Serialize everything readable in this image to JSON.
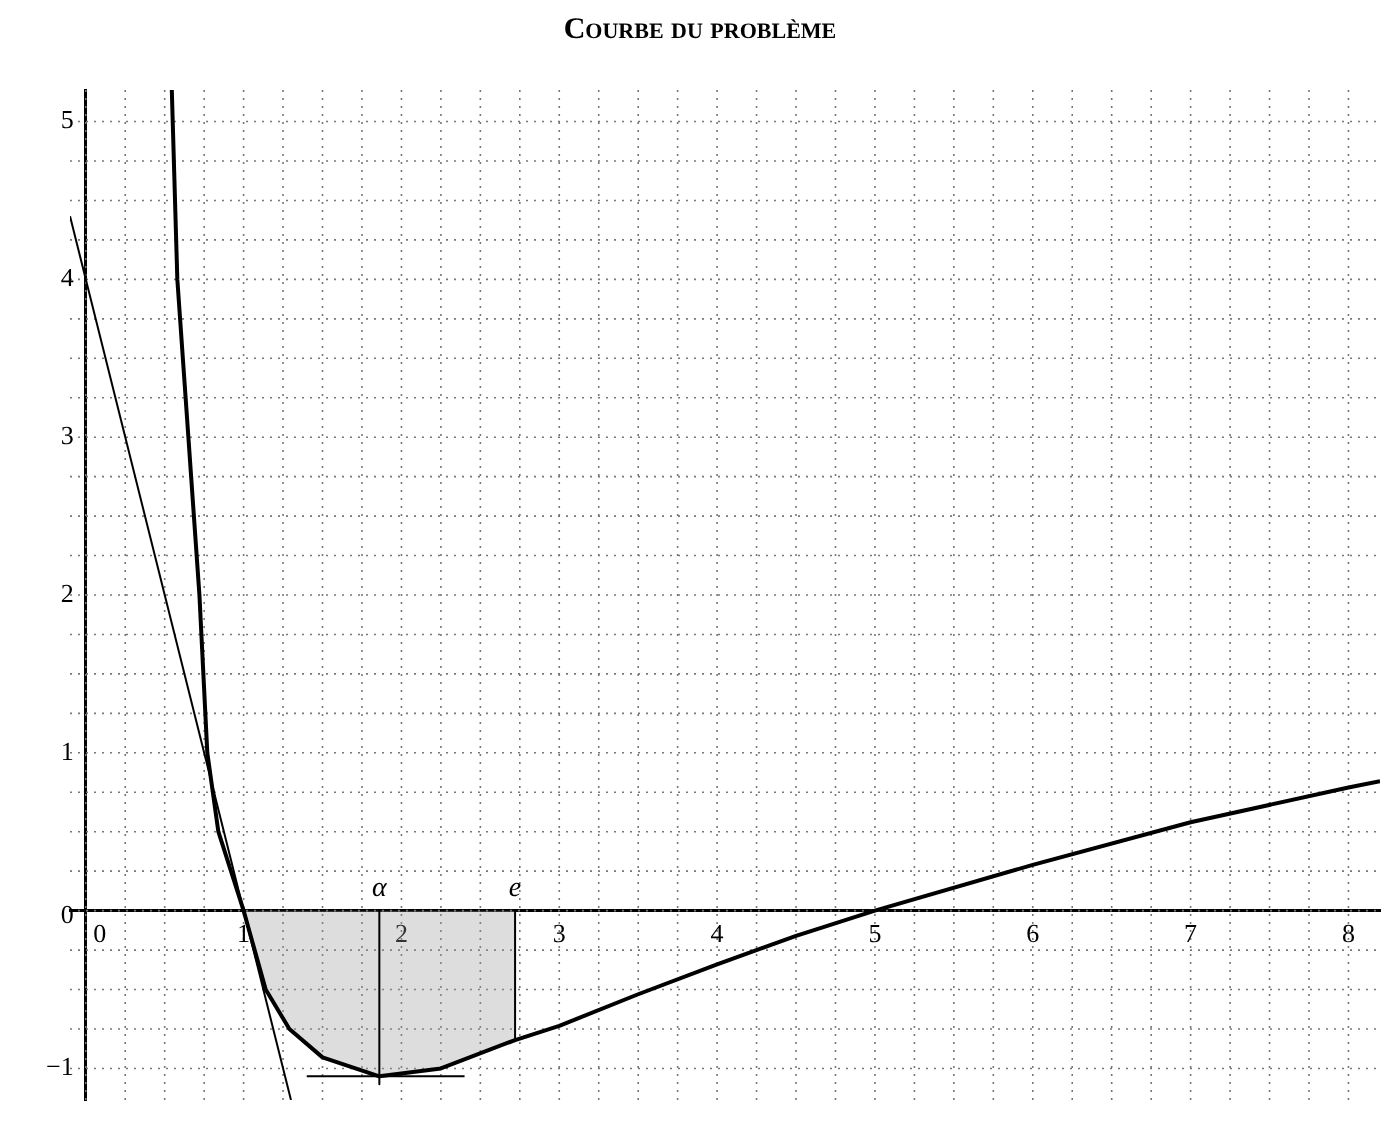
{
  "chart_data": {
    "type": "line",
    "title": "Courbe du problème",
    "series": [
      {
        "color": "#000000",
        "x": [
          0.545,
          0.58,
          0.65,
          0.72,
          0.77,
          0.84,
          1,
          1.14,
          1.29,
          1.5,
          1.86,
          2.25,
          2.72,
          3,
          3.5,
          4,
          4.5,
          5,
          6,
          7,
          8,
          8.2
        ],
        "values": [
          5.2,
          4,
          3,
          2,
          1,
          0.5,
          0,
          -0.5,
          -0.75,
          -0.93,
          -1.05,
          -1,
          -0.82,
          -0.73,
          -0.53,
          -0.34,
          -0.16,
          0,
          0.29,
          0.56,
          0.78,
          0.82
        ]
      },
      {
        "color": "#000000",
        "x": [
          -0.1,
          1.3
        ],
        "values": [
          4.4,
          -1.2
        ]
      },
      {
        "color": "#000000",
        "x": [
          1.86,
          1.86
        ],
        "values": [
          0,
          -1.1
        ]
      },
      {
        "color": "#000000",
        "x": [
          2.72,
          2.72
        ],
        "values": [
          0,
          -0.82
        ]
      },
      {
        "color": "#000000",
        "x": [
          1.4,
          2.4
        ],
        "values": [
          -1.05,
          -1.05
        ]
      },
      {
        "type": "area",
        "color": "#9a9a9a",
        "x": [
          1,
          1.14,
          1.29,
          1.5,
          1.86,
          2.25,
          2.72
        ],
        "values": [
          0,
          -0.5,
          -0.75,
          -0.93,
          -1.05,
          -1,
          -0.82
        ]
      }
    ],
    "annotations": [
      {
        "text": "α",
        "x": 1.86,
        "y": 0
      },
      {
        "text": "e",
        "x": 2.72,
        "y": 0
      }
    ],
    "xlim": [
      -0.1,
      8.2
    ],
    "ylim": [
      -1.2,
      5.2
    ],
    "xticks": [
      0,
      {
        "value": 0.25,
        "label": null
      },
      {
        "value": 0.5,
        "label": null
      },
      {
        "value": 0.75,
        "label": null
      },
      1,
      {
        "value": 1.25,
        "label": null
      },
      {
        "value": 1.5,
        "label": null
      },
      {
        "value": 1.75,
        "label": null
      },
      2,
      {
        "value": 2.25,
        "label": null
      },
      {
        "value": 2.5,
        "label": null
      },
      {
        "value": 2.75,
        "label": null
      },
      3,
      {
        "value": 3.25,
        "label": null
      },
      {
        "value": 3.5,
        "label": null
      },
      {
        "value": 3.75,
        "label": null
      },
      4,
      {
        "value": 4.25,
        "label": null
      },
      {
        "value": 4.5,
        "label": null
      },
      {
        "value": 4.75,
        "label": null
      },
      5,
      {
        "value": 5.25,
        "label": null
      },
      {
        "value": 5.5,
        "label": null
      },
      {
        "value": 5.75,
        "label": null
      },
      6,
      {
        "value": 6.25,
        "label": null
      },
      {
        "value": 6.5,
        "label": null
      },
      {
        "value": 6.75,
        "label": null
      },
      7,
      {
        "value": 7.25,
        "label": null
      },
      {
        "value": 7.5,
        "label": null
      },
      {
        "value": 7.75,
        "label": null
      },
      8
    ],
    "yticks": [
      {
        "value": -1,
        "label": "−1"
      },
      {
        "value": -0.75,
        "label": null
      },
      {
        "value": -0.5,
        "label": null
      },
      {
        "value": -0.25,
        "label": null
      },
      0,
      {
        "value": 0.25,
        "label": null
      },
      {
        "value": 0.5,
        "label": null
      },
      {
        "value": 0.75,
        "label": null
      },
      1,
      {
        "value": 1.25,
        "label": null
      },
      {
        "value": 1.5,
        "label": null
      },
      {
        "value": 1.75,
        "label": null
      },
      2,
      {
        "value": 2.25,
        "label": null
      },
      {
        "value": 2.5,
        "label": null
      },
      {
        "value": 2.75,
        "label": null
      },
      3,
      {
        "value": 3.25,
        "label": null
      },
      {
        "value": 3.5,
        "label": null
      },
      {
        "value": 3.75,
        "label": null
      },
      4,
      {
        "value": 4.25,
        "label": null
      },
      {
        "value": 4.5,
        "label": null
      },
      {
        "value": 4.75,
        "label": null
      },
      5
    ],
    "grid": true,
    "legend": false,
    "marker": "none",
    "line_style": "solid"
  }
}
